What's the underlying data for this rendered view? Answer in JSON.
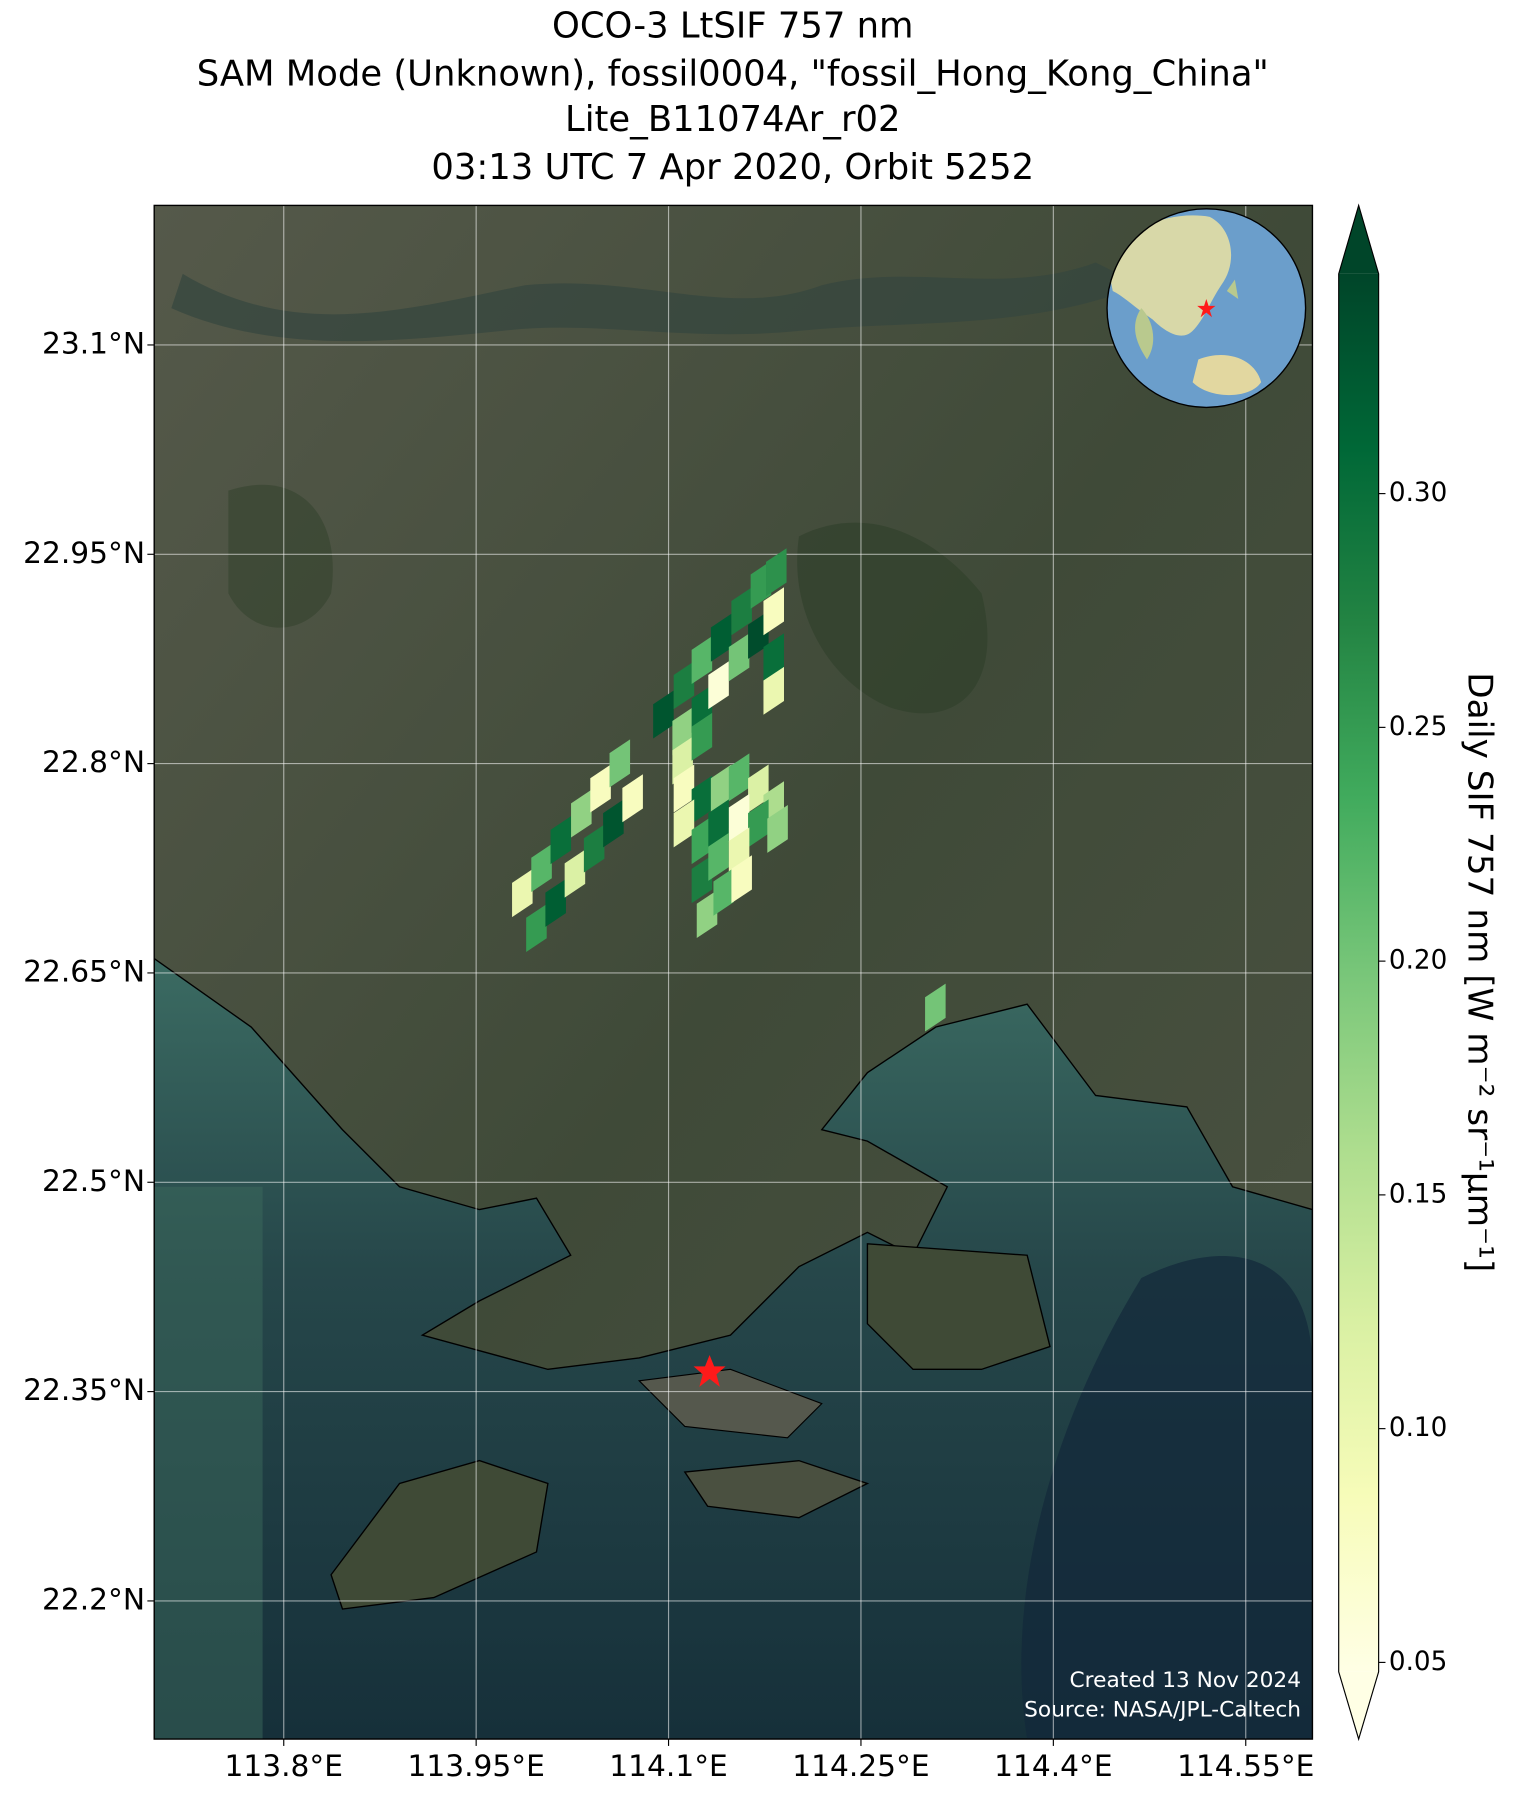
{
  "chart_data": {
    "type": "map",
    "title": [
      "OCO-3 LtSIF 757 nm",
      "SAM Mode (Unknown), fossil0004, \"fossil_Hong_Kong_China\"",
      "Lite_B11074Ar_r02",
      "03:13 UTC 7 Apr 2020, Orbit 5252"
    ],
    "xlim": [
      113.699,
      114.602
    ],
    "ylim": [
      22.101,
      23.2
    ],
    "xticks": [
      {
        "value": 113.8,
        "label": "113.8°E"
      },
      {
        "value": 113.95,
        "label": "113.95°E"
      },
      {
        "value": 114.1,
        "label": "114.1°E"
      },
      {
        "value": 114.25,
        "label": "114.25°E"
      },
      {
        "value": 114.4,
        "label": "114.4°E"
      },
      {
        "value": 114.55,
        "label": "114.55°E"
      }
    ],
    "yticks": [
      {
        "value": 23.1,
        "label": "23.1°N"
      },
      {
        "value": 22.95,
        "label": "22.95°N"
      },
      {
        "value": 22.8,
        "label": "22.8°N"
      },
      {
        "value": 22.65,
        "label": "22.65°N"
      },
      {
        "value": 22.5,
        "label": "22.5°N"
      },
      {
        "value": 22.35,
        "label": "22.35°N"
      },
      {
        "value": 22.2,
        "label": "22.2°N"
      }
    ],
    "grid": true,
    "colormap": "YlGn",
    "colorbar": {
      "label": "Daily SIF 757 nm [W m⁻² sr⁻¹μm⁻¹]",
      "lim": [
        0.048,
        0.347
      ],
      "ticks": [
        {
          "value": 0.05,
          "label": "0.05"
        },
        {
          "value": 0.1,
          "label": "0.10"
        },
        {
          "value": 0.15,
          "label": "0.15"
        },
        {
          "value": 0.2,
          "label": "0.20"
        },
        {
          "value": 0.25,
          "label": "0.25"
        },
        {
          "value": 0.3,
          "label": "0.30"
        }
      ],
      "extend": "both"
    },
    "footprints": {
      "lon": [
        113.986,
        114.001,
        114.016,
        114.032,
        114.047,
        114.062,
        113.997,
        114.012,
        114.027,
        114.042,
        114.057,
        114.072,
        114.096,
        114.112,
        114.126,
        114.141,
        114.157,
        114.172,
        114.184,
        114.111,
        114.126,
        114.139,
        114.155,
        114.17,
        114.182,
        114.111,
        114.126,
        114.182,
        114.182,
        114.112,
        114.126,
        114.141,
        114.155,
        114.17,
        114.182,
        114.112,
        114.126,
        114.139,
        114.155,
        114.17,
        114.185,
        114.126,
        114.139,
        114.155,
        114.13,
        114.143,
        114.157,
        114.308
      ],
      "lat": [
        22.708,
        22.726,
        22.746,
        22.765,
        22.783,
        22.801,
        22.683,
        22.701,
        22.722,
        22.74,
        22.758,
        22.776,
        22.836,
        22.857,
        22.875,
        22.891,
        22.91,
        22.929,
        22.938,
        22.824,
        22.84,
        22.857,
        22.877,
        22.893,
        22.91,
        22.803,
        22.82,
        22.877,
        22.853,
        22.783,
        22.775,
        22.783,
        22.791,
        22.783,
        22.771,
        22.758,
        22.746,
        22.758,
        22.762,
        22.758,
        22.754,
        22.718,
        22.734,
        22.738,
        22.693,
        22.709,
        22.718,
        22.626
      ],
      "sif": [
        0.1,
        0.22,
        0.3,
        0.18,
        0.08,
        0.2,
        0.25,
        0.32,
        0.12,
        0.28,
        0.33,
        0.08,
        0.33,
        0.28,
        0.22,
        0.32,
        0.28,
        0.25,
        0.26,
        0.18,
        0.3,
        0.06,
        0.2,
        0.34,
        0.08,
        0.12,
        0.25,
        0.3,
        0.1,
        0.08,
        0.3,
        0.18,
        0.22,
        0.12,
        0.16,
        0.1,
        0.24,
        0.3,
        0.06,
        0.25,
        0.18,
        0.28,
        0.22,
        0.1,
        0.18,
        0.22,
        0.08,
        0.2
      ]
    },
    "target": {
      "lon": 114.132,
      "lat": 22.364
    },
    "credits": [
      "Created 13 Nov 2024",
      "Source: NASA/JPL-Caltech"
    ]
  }
}
